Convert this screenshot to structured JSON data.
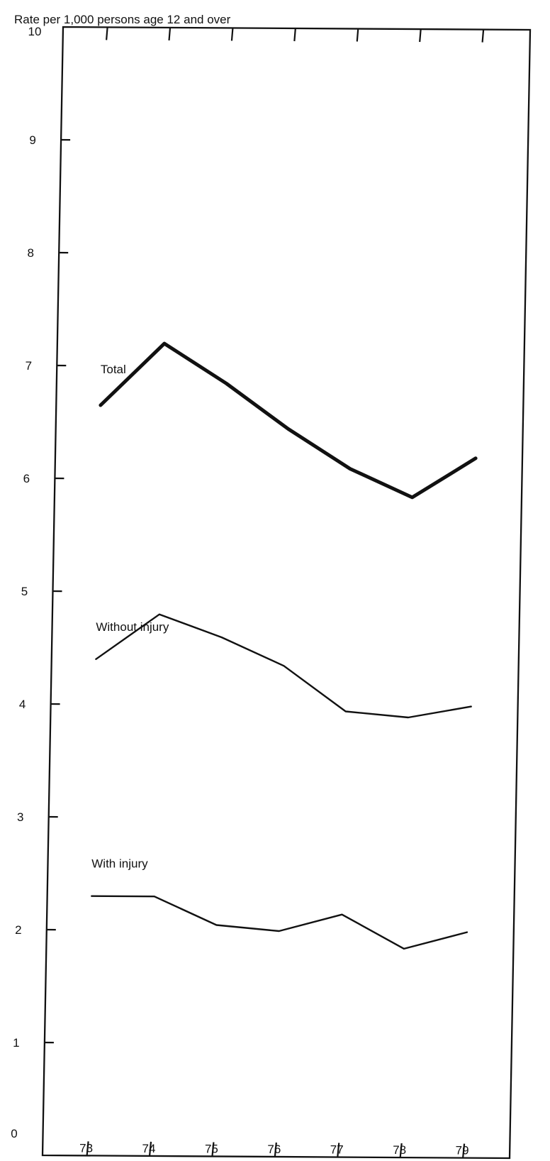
{
  "chart_data": {
    "type": "line",
    "title": "",
    "xlabel": "",
    "ylabel": "Rate per 1,000 persons age 12 and over",
    "ylim": [
      0,
      10
    ],
    "yticks": [
      "0",
      "1",
      "2",
      "3",
      "4",
      "5",
      "6",
      "7",
      "8",
      "9",
      "10"
    ],
    "categories": [
      "73",
      "74",
      "75",
      "76",
      "77",
      "78",
      "79"
    ],
    "grid": false,
    "series": [
      {
        "name": "Total",
        "color": "#111111",
        "emphasis": "bold",
        "values": [
          6.65,
          7.2,
          6.85,
          6.45,
          6.1,
          5.85,
          6.2
        ]
      },
      {
        "name": "Without injury",
        "color": "#111111",
        "emphasis": "normal",
        "values": [
          4.4,
          4.8,
          4.6,
          4.35,
          3.95,
          3.9,
          4.0
        ]
      },
      {
        "name": "With injury",
        "color": "#111111",
        "emphasis": "normal",
        "values": [
          2.3,
          2.3,
          2.05,
          2.0,
          2.15,
          1.85,
          2.0
        ]
      }
    ]
  }
}
